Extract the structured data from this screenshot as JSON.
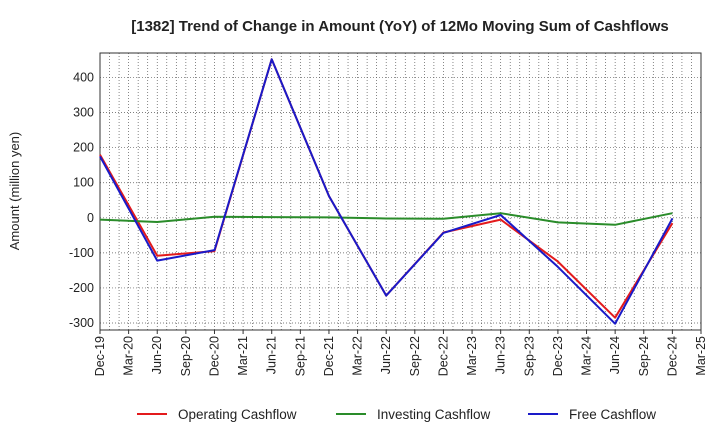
{
  "chart_data": {
    "type": "line",
    "title": "[1382]  Trend of Change in Amount (YoY) of 12Mo Moving Sum of Cashflows",
    "xlabel": "",
    "ylabel": "Amount (million yen)",
    "ylim": [
      -320,
      470
    ],
    "yticks": [
      400,
      300,
      200,
      100,
      0,
      -100,
      -200,
      -300
    ],
    "grid": true,
    "legend_position": "bottom",
    "categories": [
      "Dec-19",
      "Mar-20",
      "Jun-20",
      "Sep-20",
      "Dec-20",
      "Mar-21",
      "Jun-21",
      "Sep-21",
      "Dec-21",
      "Mar-22",
      "Jun-22",
      "Sep-22",
      "Dec-22",
      "Mar-23",
      "Jun-23",
      "Sep-23",
      "Dec-23",
      "Mar-24",
      "Jun-24",
      "Sep-24",
      "Dec-24",
      "Mar-25"
    ],
    "series": [
      {
        "name": "Operating Cashflow",
        "color": "#e31a1c",
        "values": [
          180,
          null,
          -108,
          null,
          -95,
          null,
          452,
          null,
          62,
          null,
          -222,
          null,
          -42,
          null,
          -5,
          null,
          -125,
          null,
          -285,
          null,
          -15,
          null
        ]
      },
      {
        "name": "Investing Cashflow",
        "color": "#2a8c2a",
        "values": [
          -5,
          null,
          -12,
          null,
          3,
          null,
          2,
          null,
          1,
          null,
          -2,
          null,
          -3,
          null,
          13,
          null,
          -13,
          null,
          -20,
          null,
          13,
          null
        ]
      },
      {
        "name": "Free Cashflow",
        "color": "#1a1ac8",
        "values": [
          175,
          null,
          -122,
          null,
          -92,
          null,
          452,
          null,
          62,
          null,
          -222,
          null,
          -43,
          null,
          8,
          null,
          -140,
          null,
          -302,
          null,
          -2,
          null
        ]
      }
    ]
  }
}
